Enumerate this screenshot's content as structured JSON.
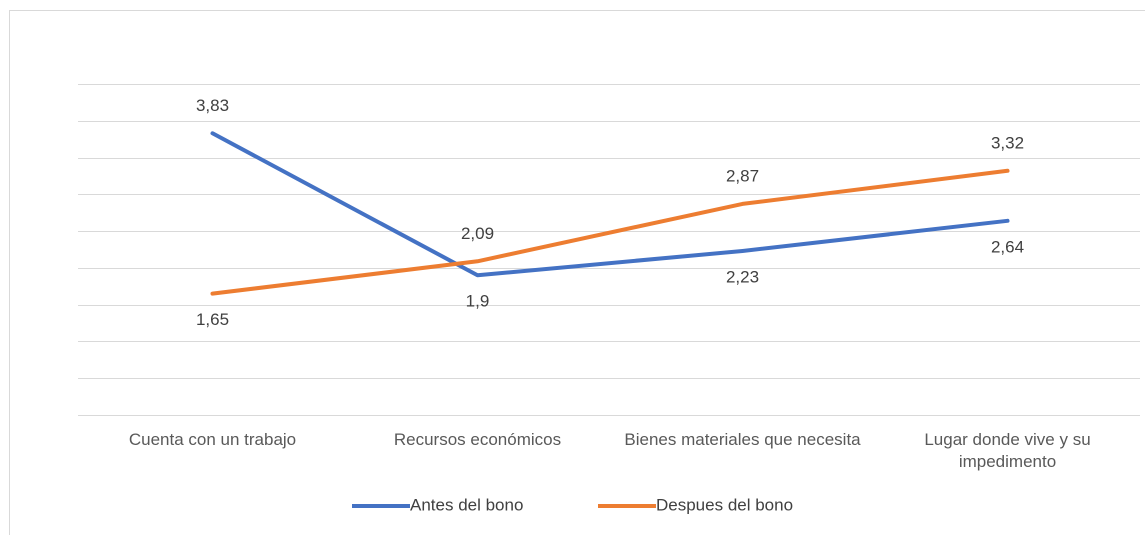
{
  "chart_data": {
    "type": "line",
    "categories": [
      "Cuenta con un trabajo",
      "Recursos económicos",
      "Bienes materiales que necesita",
      "Lugar donde vive y su impedimento"
    ],
    "series": [
      {
        "name": "Antes del bono",
        "color": "#4472c4",
        "values": [
          3.83,
          1.9,
          2.23,
          2.64
        ],
        "value_labels": [
          "3,83",
          "1,9",
          "2,23",
          "2,64"
        ]
      },
      {
        "name": "Despues del bono",
        "color": "#ed7d31",
        "values": [
          1.65,
          2.09,
          2.87,
          3.32
        ],
        "value_labels": [
          "1,65",
          "2,09",
          "2,87",
          "3,32"
        ]
      }
    ],
    "ylim": [
      0,
      4.5
    ],
    "yticks": [
      0,
      0.5,
      1,
      1.5,
      2,
      2.5,
      3,
      3.5,
      4,
      4.5
    ],
    "grid": true,
    "legend": "bottom"
  }
}
